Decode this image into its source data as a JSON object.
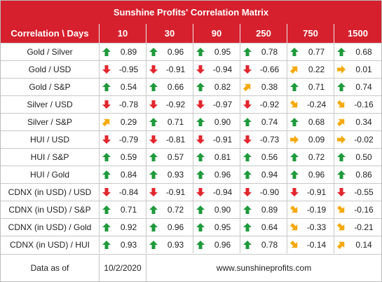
{
  "title": "Sunshine Profits' Correlation Matrix",
  "colors": {
    "header_bg": "#d6202d",
    "up": "#1f9a3c",
    "down": "#e2262e",
    "side": "#f4a90f"
  },
  "columns": [
    "Correlation \\ Days",
    "10",
    "30",
    "90",
    "250",
    "750",
    "1500"
  ],
  "rows": [
    {
      "label": "Gold / Silver",
      "cells": [
        {
          "value": "0.89",
          "arrow": "up-arrow"
        },
        {
          "value": "0.96",
          "arrow": "up-arrow"
        },
        {
          "value": "0.95",
          "arrow": "up-arrow"
        },
        {
          "value": "0.78",
          "arrow": "up-arrow"
        },
        {
          "value": "0.77",
          "arrow": "up-arrow"
        },
        {
          "value": "0.68",
          "arrow": "up-arrow"
        }
      ]
    },
    {
      "label": "Gold / USD",
      "cells": [
        {
          "value": "-0.95",
          "arrow": "down-arrow"
        },
        {
          "value": "-0.91",
          "arrow": "down-arrow"
        },
        {
          "value": "-0.94",
          "arrow": "down-arrow"
        },
        {
          "value": "-0.66",
          "arrow": "down-arrow"
        },
        {
          "value": "0.22",
          "arrow": "up-right-arrow"
        },
        {
          "value": "0.01",
          "arrow": "right-arrow"
        }
      ]
    },
    {
      "label": "Gold / S&P",
      "cells": [
        {
          "value": "0.54",
          "arrow": "up-arrow"
        },
        {
          "value": "0.66",
          "arrow": "up-arrow"
        },
        {
          "value": "0.82",
          "arrow": "up-arrow"
        },
        {
          "value": "0.38",
          "arrow": "up-right-arrow"
        },
        {
          "value": "0.71",
          "arrow": "up-arrow"
        },
        {
          "value": "0.74",
          "arrow": "up-arrow"
        }
      ]
    },
    {
      "label": "Silver / USD",
      "cells": [
        {
          "value": "-0.78",
          "arrow": "down-arrow"
        },
        {
          "value": "-0.92",
          "arrow": "down-arrow"
        },
        {
          "value": "-0.97",
          "arrow": "down-arrow"
        },
        {
          "value": "-0.92",
          "arrow": "down-arrow"
        },
        {
          "value": "-0.24",
          "arrow": "down-right-arrow"
        },
        {
          "value": "-0.16",
          "arrow": "down-right-arrow"
        }
      ]
    },
    {
      "label": "Silver / S&P",
      "cells": [
        {
          "value": "0.29",
          "arrow": "up-right-arrow"
        },
        {
          "value": "0.71",
          "arrow": "up-arrow"
        },
        {
          "value": "0.90",
          "arrow": "up-arrow"
        },
        {
          "value": "0.74",
          "arrow": "up-arrow"
        },
        {
          "value": "0.68",
          "arrow": "up-arrow"
        },
        {
          "value": "0.34",
          "arrow": "up-right-arrow"
        }
      ]
    },
    {
      "label": "HUI / USD",
      "cells": [
        {
          "value": "-0.79",
          "arrow": "down-arrow"
        },
        {
          "value": "-0.81",
          "arrow": "down-arrow"
        },
        {
          "value": "-0.91",
          "arrow": "down-arrow"
        },
        {
          "value": "-0.73",
          "arrow": "down-arrow"
        },
        {
          "value": "0.09",
          "arrow": "right-arrow"
        },
        {
          "value": "-0.02",
          "arrow": "right-arrow"
        }
      ]
    },
    {
      "label": "HUI / S&P",
      "cells": [
        {
          "value": "0.59",
          "arrow": "up-arrow"
        },
        {
          "value": "0.57",
          "arrow": "up-arrow"
        },
        {
          "value": "0.81",
          "arrow": "up-arrow"
        },
        {
          "value": "0.56",
          "arrow": "up-arrow"
        },
        {
          "value": "0.72",
          "arrow": "up-arrow"
        },
        {
          "value": "0.50",
          "arrow": "up-arrow"
        }
      ]
    },
    {
      "label": "HUI / Gold",
      "cells": [
        {
          "value": "0.84",
          "arrow": "up-arrow"
        },
        {
          "value": "0.93",
          "arrow": "up-arrow"
        },
        {
          "value": "0.96",
          "arrow": "up-arrow"
        },
        {
          "value": "0.94",
          "arrow": "up-arrow"
        },
        {
          "value": "0.96",
          "arrow": "up-arrow"
        },
        {
          "value": "0.86",
          "arrow": "up-arrow"
        }
      ]
    },
    {
      "label": "CDNX (in USD) / USD",
      "cells": [
        {
          "value": "-0.84",
          "arrow": "down-arrow"
        },
        {
          "value": "-0.91",
          "arrow": "down-arrow"
        },
        {
          "value": "-0.94",
          "arrow": "down-arrow"
        },
        {
          "value": "-0.90",
          "arrow": "down-arrow"
        },
        {
          "value": "-0.91",
          "arrow": "down-arrow"
        },
        {
          "value": "-0.55",
          "arrow": "down-arrow"
        }
      ]
    },
    {
      "label": "CDNX (in USD) / S&P",
      "cells": [
        {
          "value": "0.71",
          "arrow": "up-arrow"
        },
        {
          "value": "0.72",
          "arrow": "up-arrow"
        },
        {
          "value": "0.90",
          "arrow": "up-arrow"
        },
        {
          "value": "0.89",
          "arrow": "up-arrow"
        },
        {
          "value": "-0.19",
          "arrow": "down-right-arrow"
        },
        {
          "value": "-0.16",
          "arrow": "down-right-arrow"
        }
      ]
    },
    {
      "label": "CDNX (in USD) / Gold",
      "cells": [
        {
          "value": "0.92",
          "arrow": "up-arrow"
        },
        {
          "value": "0.96",
          "arrow": "up-arrow"
        },
        {
          "value": "0.95",
          "arrow": "up-arrow"
        },
        {
          "value": "0.64",
          "arrow": "up-arrow"
        },
        {
          "value": "-0.33",
          "arrow": "down-right-arrow"
        },
        {
          "value": "-0.21",
          "arrow": "down-right-arrow"
        }
      ]
    },
    {
      "label": "CDNX (in USD) / HUI",
      "cells": [
        {
          "value": "0.93",
          "arrow": "up-arrow"
        },
        {
          "value": "0.93",
          "arrow": "up-arrow"
        },
        {
          "value": "0.96",
          "arrow": "up-arrow"
        },
        {
          "value": "0.78",
          "arrow": "up-arrow"
        },
        {
          "value": "-0.14",
          "arrow": "down-right-arrow"
        },
        {
          "value": "0.14",
          "arrow": "up-right-arrow"
        }
      ]
    }
  ],
  "footer": {
    "label": "Data as of",
    "date": "10/2/2020",
    "site": "www.sunshineprofits.com"
  }
}
